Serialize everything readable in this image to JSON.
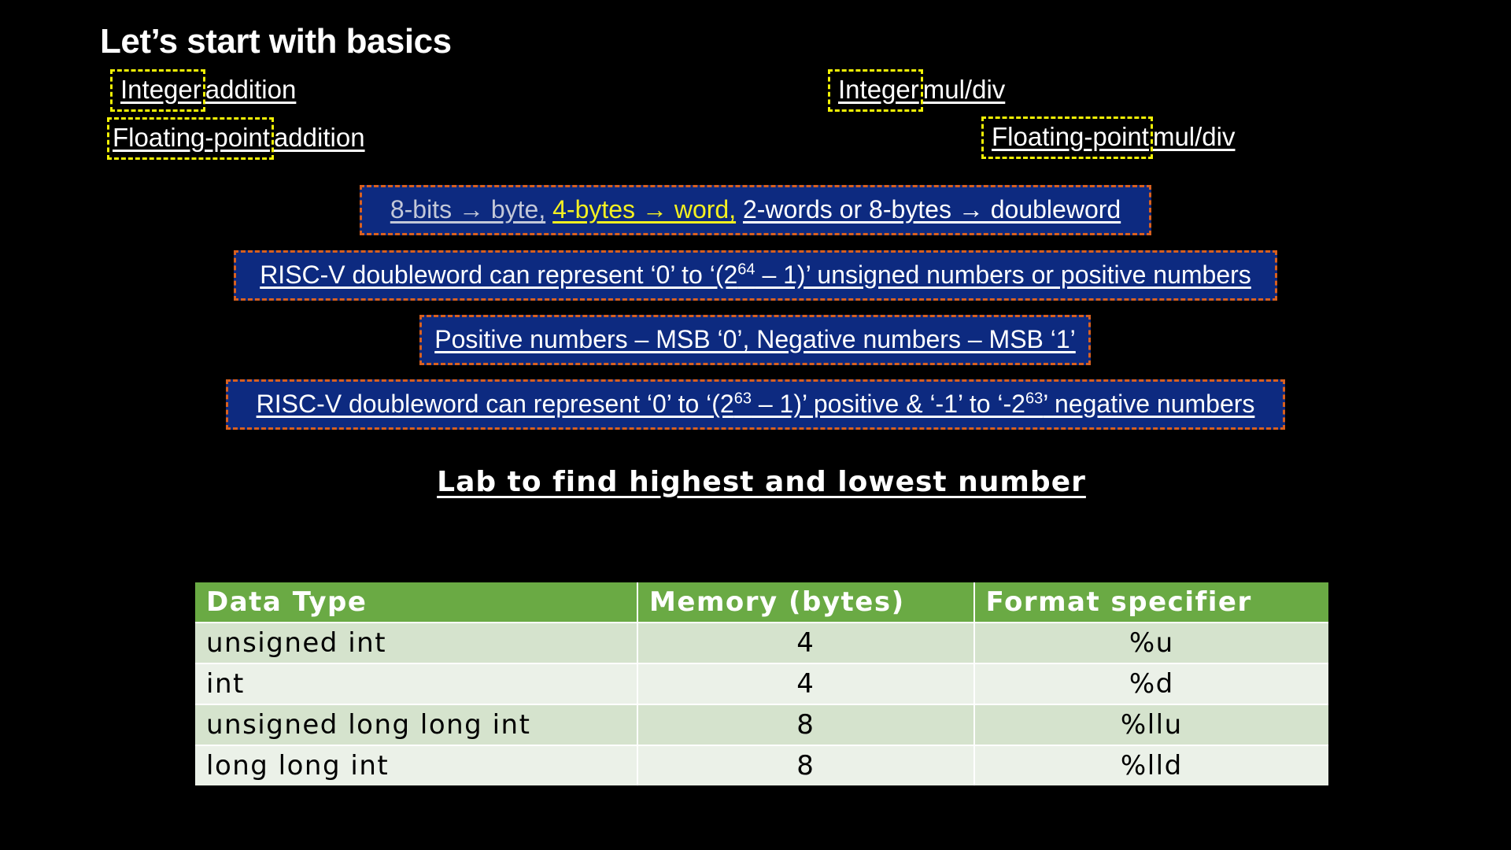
{
  "title": "Let’s start with basics",
  "topics": {
    "int_add": {
      "boxed": "Integer",
      "rest": "addition"
    },
    "fp_add": {
      "boxed": "Floating-point",
      "rest": "addition"
    },
    "int_muldiv": {
      "boxed": "Integer",
      "rest": "mul/div"
    },
    "fp_muldiv": {
      "boxed": "Floating-point",
      "rest": "mul/div"
    }
  },
  "facts": {
    "sizes": {
      "byte": "8-bits → byte,",
      "word": "4-bytes → word,",
      "doubleword": "2-words or 8-bytes → doubleword"
    },
    "unsigned_range": {
      "pre": "RISC-V doubleword can represent ‘0’ to ‘(2",
      "exp": "64",
      "post": " – 1)’ unsigned numbers or positive numbers"
    },
    "msb": "Positive numbers – MSB ‘0’, Negative numbers – MSB ‘1’",
    "signed_range": {
      "pre": "RISC-V doubleword can represent ‘0’ to ‘(2",
      "exp1": "63",
      "mid": " – 1)’ positive & ‘-1’ to ‘-2",
      "exp2": "63",
      "post": "’ negative numbers"
    }
  },
  "lab_heading": "Lab to find highest and lowest number",
  "table": {
    "headers": [
      "Data Type",
      "Memory (bytes)",
      "Format specifier"
    ],
    "rows": [
      [
        "unsigned int",
        "4",
        "%u"
      ],
      [
        "int",
        "4",
        "%d"
      ],
      [
        "unsigned long long int",
        "8",
        "%llu"
      ],
      [
        "long long int",
        "8",
        "%lld"
      ]
    ]
  },
  "colors": {
    "background": "#000000",
    "highlight_box": "#f2f205",
    "fact_fill": "#0d2a80",
    "fact_border": "#d8601f",
    "table_header": "#6aaa44",
    "row_odd": "#d5e3cd",
    "row_even": "#ebf1e8"
  }
}
